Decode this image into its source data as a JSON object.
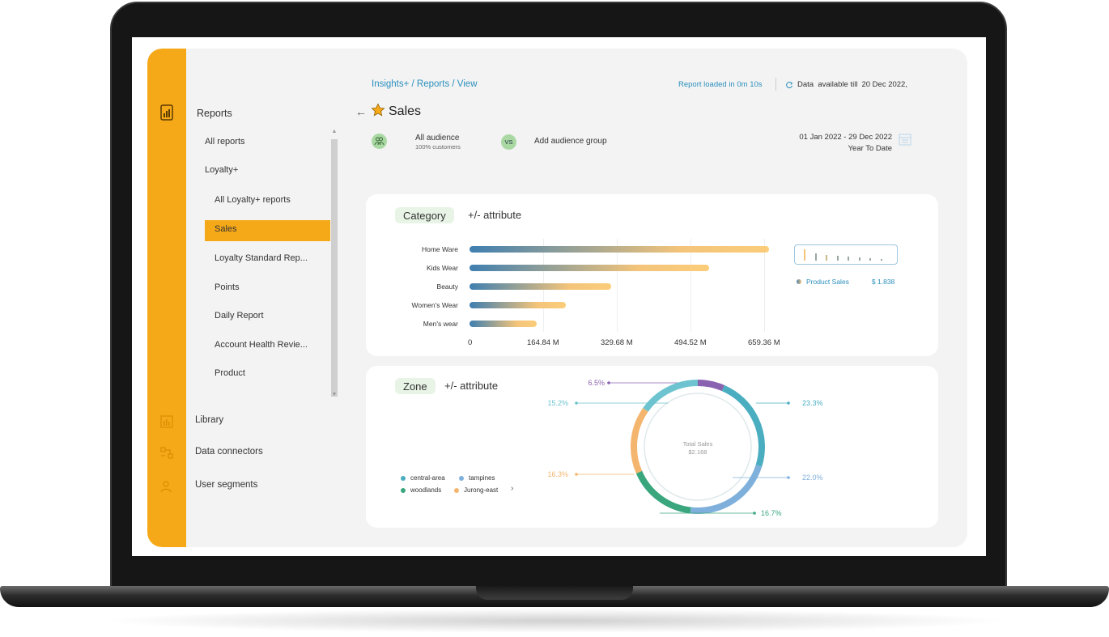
{
  "breadcrumb": "Insights+ / Reports / View",
  "status": {
    "loaded": "Report loaded in 0m 10s",
    "available_label": "Data  available till",
    "available_date": "20 Dec 2022,"
  },
  "page": {
    "title": "Sales"
  },
  "nav": {
    "title": "Reports",
    "items": [
      {
        "label": "All reports"
      },
      {
        "label": "Loyalty+"
      },
      {
        "label": "All Loyalty+ reports"
      },
      {
        "label": "Sales"
      },
      {
        "label": "Loyalty Standard Rep..."
      },
      {
        "label": "Points"
      },
      {
        "label": "Daily Report"
      },
      {
        "label": "Account Health Revie..."
      },
      {
        "label": "Product"
      }
    ],
    "bottom": [
      {
        "label": "Library"
      },
      {
        "label": "Data connectors"
      },
      {
        "label": "User segments"
      }
    ]
  },
  "audience": {
    "name": "All audience",
    "sub": "100% customers",
    "vs": "VS",
    "add": "Add audience group"
  },
  "date": {
    "range": "01 Jan 2022 - 29 Dec 2022",
    "preset": "Year To Date"
  },
  "category": {
    "tag": "Category",
    "attr": "+/- attribute",
    "legend_label": "Product Sales",
    "legend_value": "$ 1.838"
  },
  "zone": {
    "tag": "Zone",
    "attr": "+/- attribute",
    "center_title": "Total Sales",
    "center_value": "$2.168",
    "legend": [
      {
        "label": "central-area",
        "color": "#4aaec0"
      },
      {
        "label": "tampines",
        "color": "#7fb0dc"
      },
      {
        "label": "woodlands",
        "color": "#3aa67e"
      },
      {
        "label": "Jurong-east",
        "color": "#f4b56f"
      }
    ],
    "more_icon": "chevron-right-icon"
  },
  "chart_data": [
    {
      "type": "bar",
      "orientation": "horizontal",
      "categories": [
        "Home Ware",
        "Kids Wear",
        "Beauty",
        "Women's Wear",
        "Men's wear"
      ],
      "values": [
        670,
        537,
        317,
        216,
        150
      ],
      "x_ticks": [
        "0",
        "164.84 M",
        "329.68 M",
        "494.52 M",
        "659.36 M"
      ],
      "x_tick_values": [
        0,
        164.84,
        329.68,
        494.52,
        659.36
      ],
      "xlim": [
        0,
        659.36
      ],
      "unit": "M"
    },
    {
      "type": "pie",
      "donut": true,
      "slices": [
        {
          "label": "6.5%",
          "value": 6.5,
          "color": "#8a63b0"
        },
        {
          "label": "23.3%",
          "value": 23.3,
          "color": "#4aaec0"
        },
        {
          "label": "22.0%",
          "value": 22.0,
          "color": "#7fb0dc"
        },
        {
          "label": "16.7%",
          "value": 16.7,
          "color": "#3aa67e"
        },
        {
          "label": "16.3%",
          "value": 16.3,
          "color": "#f4b56f"
        },
        {
          "label": "15.2%",
          "value": 15.2,
          "color": "#6dc3cf"
        }
      ]
    }
  ]
}
